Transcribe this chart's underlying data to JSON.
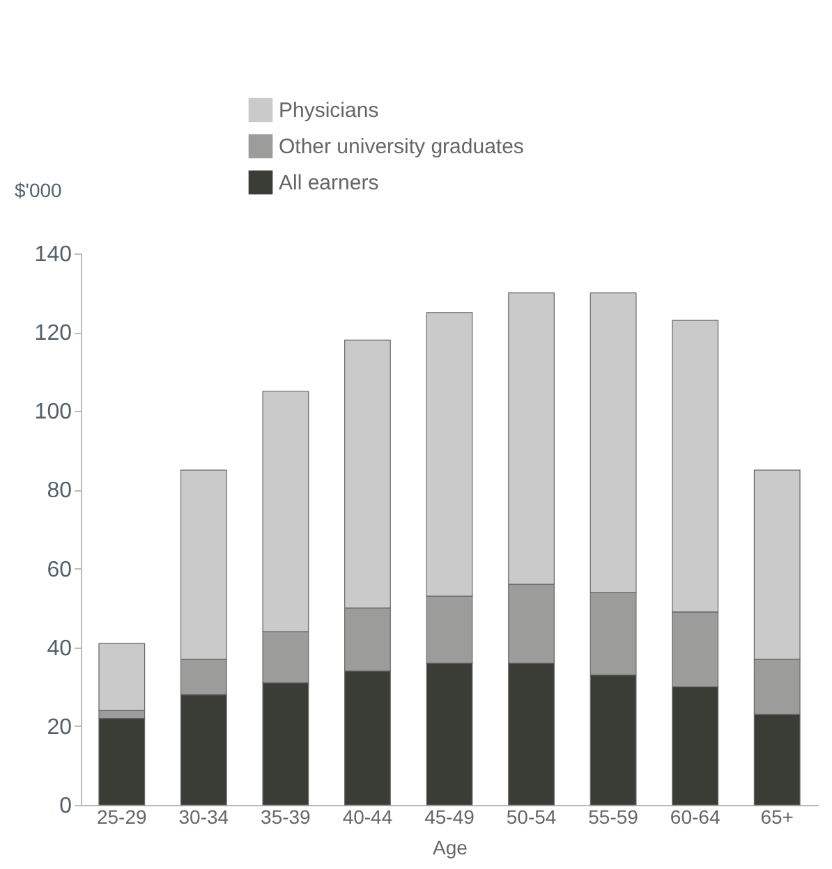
{
  "chart_data": {
    "type": "bar",
    "stacked": true,
    "xlabel": "Age",
    "ylabel": "$'000",
    "categories": [
      "25-29",
      "30-34",
      "35-39",
      "40-44",
      "45-49",
      "50-54",
      "55-59",
      "60-64",
      "65+"
    ],
    "series": [
      {
        "name": "All earners",
        "color": "#3a3d35",
        "values": [
          22,
          28,
          31,
          34,
          36,
          36,
          33,
          30,
          23
        ]
      },
      {
        "name": "Other university graduates",
        "color": "#9c9c9a",
        "values": [
          2,
          9,
          13,
          16,
          17,
          20,
          21,
          19,
          14
        ]
      },
      {
        "name": "Physicians",
        "color": "#cacaca",
        "values": [
          17,
          48,
          61,
          68,
          72,
          74,
          76,
          74,
          48
        ]
      }
    ],
    "ylim": [
      0,
      140
    ],
    "yticks": [
      0,
      20,
      40,
      60,
      80,
      100,
      120,
      140
    ],
    "grid": false,
    "legend": "top"
  }
}
